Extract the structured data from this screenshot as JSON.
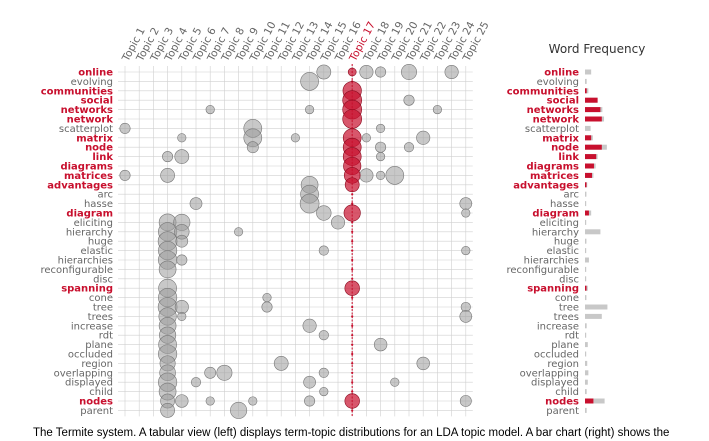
{
  "colors": {
    "highlight": "#c8102e",
    "neutral": "#8a8a8a",
    "bar_neutral": "#c8c8c8",
    "grid": "#d0d0d0",
    "label_gray": "#666666"
  },
  "topics": [
    "Topic 1",
    "Topic 2",
    "Topic 3",
    "Topic 4",
    "Topic 5",
    "Topic 6",
    "Topic 7",
    "Topic 8",
    "Topic 9",
    "Topic 10",
    "Topic 11",
    "Topic 12",
    "Topic 13",
    "Topic 14",
    "Topic 15",
    "Topic 16",
    "Topic 17",
    "Topic 18",
    "Topic 19",
    "Topic 20",
    "Topic 21",
    "Topic 22",
    "Topic 23",
    "Topic 24",
    "Topic 25"
  ],
  "selected_topic_index": 16,
  "word_frequency_title": "Word Frequency",
  "caption": "The Termite system. A tabular view (left) displays term-topic distributions for an LDA topic model. A bar chart (right) shows the",
  "terms": [
    {
      "term": "online",
      "highlight": true,
      "topic_weight": 0.18,
      "freq": 0.22,
      "overlay": 0
    },
    {
      "term": "evolving",
      "highlight": false,
      "topic_weight": 0,
      "freq": 0.06,
      "overlay": 0
    },
    {
      "term": "communities",
      "highlight": true,
      "topic_weight": 0.95,
      "freq": 0.12,
      "overlay": 0.06
    },
    {
      "term": "social",
      "highlight": true,
      "topic_weight": 1.0,
      "freq": 0.45,
      "overlay": 0.45
    },
    {
      "term": "networks",
      "highlight": true,
      "topic_weight": 1.0,
      "freq": 0.62,
      "overlay": 0.55
    },
    {
      "term": "network",
      "highlight": true,
      "topic_weight": 1.0,
      "freq": 0.68,
      "overlay": 0.6
    },
    {
      "term": "scatterplot",
      "highlight": false,
      "topic_weight": 0,
      "freq": 0.2,
      "overlay": 0
    },
    {
      "term": "matrix",
      "highlight": true,
      "topic_weight": 0.9,
      "freq": 0.28,
      "overlay": 0.22
    },
    {
      "term": "node",
      "highlight": true,
      "topic_weight": 0.9,
      "freq": 0.78,
      "overlay": 0.6
    },
    {
      "term": "link",
      "highlight": true,
      "topic_weight": 0.9,
      "freq": 0.45,
      "overlay": 0.4
    },
    {
      "term": "diagrams",
      "highlight": true,
      "topic_weight": 0.85,
      "freq": 0.38,
      "overlay": 0.32
    },
    {
      "term": "matrices",
      "highlight": true,
      "topic_weight": 0.7,
      "freq": 0.3,
      "overlay": 0.25
    },
    {
      "term": "advantages",
      "highlight": true,
      "topic_weight": 0.55,
      "freq": 0.08,
      "overlay": 0.03
    },
    {
      "term": "arc",
      "highlight": false,
      "topic_weight": 0,
      "freq": 0.05,
      "overlay": 0
    },
    {
      "term": "hasse",
      "highlight": false,
      "topic_weight": 0,
      "freq": 0.04,
      "overlay": 0
    },
    {
      "term": "diagram",
      "highlight": true,
      "topic_weight": 0.75,
      "freq": 0.22,
      "overlay": 0.14
    },
    {
      "term": "eliciting",
      "highlight": false,
      "topic_weight": 0,
      "freq": 0.04,
      "overlay": 0
    },
    {
      "term": "hierarchy",
      "highlight": false,
      "topic_weight": 0,
      "freq": 0.55,
      "overlay": 0
    },
    {
      "term": "huge",
      "highlight": false,
      "topic_weight": 0,
      "freq": 0.05,
      "overlay": 0
    },
    {
      "term": "elastic",
      "highlight": false,
      "topic_weight": 0,
      "freq": 0.04,
      "overlay": 0
    },
    {
      "term": "hierarchies",
      "highlight": false,
      "topic_weight": 0,
      "freq": 0.14,
      "overlay": 0
    },
    {
      "term": "reconfigurable",
      "highlight": false,
      "topic_weight": 0,
      "freq": 0.04,
      "overlay": 0
    },
    {
      "term": "disc",
      "highlight": false,
      "topic_weight": 0,
      "freq": 0.04,
      "overlay": 0
    },
    {
      "term": "spanning",
      "highlight": true,
      "topic_weight": 0.6,
      "freq": 0.1,
      "overlay": 0.05
    },
    {
      "term": "cone",
      "highlight": false,
      "topic_weight": 0,
      "freq": 0.05,
      "overlay": 0
    },
    {
      "term": "tree",
      "highlight": false,
      "topic_weight": 0,
      "freq": 0.8,
      "overlay": 0
    },
    {
      "term": "trees",
      "highlight": false,
      "topic_weight": 0,
      "freq": 0.6,
      "overlay": 0
    },
    {
      "term": "increase",
      "highlight": false,
      "topic_weight": 0,
      "freq": 0.06,
      "overlay": 0
    },
    {
      "term": "rdt",
      "highlight": false,
      "topic_weight": 0,
      "freq": 0.04,
      "overlay": 0
    },
    {
      "term": "plane",
      "highlight": false,
      "topic_weight": 0,
      "freq": 0.1,
      "overlay": 0
    },
    {
      "term": "occluded",
      "highlight": false,
      "topic_weight": 0,
      "freq": 0.04,
      "overlay": 0
    },
    {
      "term": "region",
      "highlight": false,
      "topic_weight": 0,
      "freq": 0.08,
      "overlay": 0
    },
    {
      "term": "overlapping",
      "highlight": false,
      "topic_weight": 0,
      "freq": 0.12,
      "overlay": 0
    },
    {
      "term": "displayed",
      "highlight": false,
      "topic_weight": 0,
      "freq": 0.1,
      "overlay": 0
    },
    {
      "term": "child",
      "highlight": false,
      "topic_weight": 0,
      "freq": 0.06,
      "overlay": 0
    },
    {
      "term": "nodes",
      "highlight": true,
      "topic_weight": 0.6,
      "freq": 0.7,
      "overlay": 0.3
    },
    {
      "term": "parent",
      "highlight": false,
      "topic_weight": 0,
      "freq": 0.06,
      "overlay": 0
    }
  ],
  "bubbles": [
    [
      0,
      14,
      0.55
    ],
    [
      0,
      17,
      0.5
    ],
    [
      0,
      18,
      0.3
    ],
    [
      0,
      20,
      0.65
    ],
    [
      0,
      23,
      0.5
    ],
    [
      1,
      13,
      0.9
    ],
    [
      3,
      20,
      0.3
    ],
    [
      4,
      6,
      0.2
    ],
    [
      4,
      13,
      0.2
    ],
    [
      4,
      22,
      0.2
    ],
    [
      6,
      0,
      0.3
    ],
    [
      6,
      9,
      0.9
    ],
    [
      6,
      18,
      0.2
    ],
    [
      7,
      9,
      0.9
    ],
    [
      7,
      4,
      0.2
    ],
    [
      7,
      12,
      0.2
    ],
    [
      7,
      17,
      0.2
    ],
    [
      7,
      21,
      0.5
    ],
    [
      8,
      9,
      0.35
    ],
    [
      8,
      20,
      0.25
    ],
    [
      8,
      18,
      0.3
    ],
    [
      9,
      3,
      0.3
    ],
    [
      9,
      4,
      0.55
    ],
    [
      9,
      18,
      0.2
    ],
    [
      11,
      0,
      0.3
    ],
    [
      11,
      3,
      0.55
    ],
    [
      11,
      17,
      0.5
    ],
    [
      11,
      18,
      0.2
    ],
    [
      11,
      19,
      0.9
    ],
    [
      12,
      13,
      0.8
    ],
    [
      13,
      13,
      0.9
    ],
    [
      14,
      13,
      1.0
    ],
    [
      14,
      5,
      0.4
    ],
    [
      14,
      24,
      0.4
    ],
    [
      15,
      14,
      0.6
    ],
    [
      15,
      24,
      0.2
    ],
    [
      16,
      3,
      0.8
    ],
    [
      16,
      4,
      0.75
    ],
    [
      16,
      15,
      0.5
    ],
    [
      17,
      3,
      0.95
    ],
    [
      17,
      4,
      0.6
    ],
    [
      17,
      8,
      0.2
    ],
    [
      18,
      3,
      1.0
    ],
    [
      18,
      4,
      0.4
    ],
    [
      19,
      3,
      0.95
    ],
    [
      19,
      14,
      0.25
    ],
    [
      19,
      24,
      0.2
    ],
    [
      20,
      3,
      0.95
    ],
    [
      20,
      4,
      0.3
    ],
    [
      21,
      3,
      0.8
    ],
    [
      23,
      3,
      0.9
    ],
    [
      24,
      3,
      0.95
    ],
    [
      24,
      10,
      0.2
    ],
    [
      25,
      3,
      1.0
    ],
    [
      25,
      4,
      0.5
    ],
    [
      25,
      10,
      0.3
    ],
    [
      25,
      24,
      0.25
    ],
    [
      26,
      3,
      0.85
    ],
    [
      26,
      4,
      0.2
    ],
    [
      26,
      24,
      0.4
    ],
    [
      27,
      3,
      0.8
    ],
    [
      27,
      13,
      0.5
    ],
    [
      28,
      3,
      0.75
    ],
    [
      28,
      14,
      0.25
    ],
    [
      29,
      3,
      0.9
    ],
    [
      29,
      18,
      0.45
    ],
    [
      30,
      3,
      0.95
    ],
    [
      31,
      3,
      0.65
    ],
    [
      31,
      11,
      0.55
    ],
    [
      31,
      21,
      0.45
    ],
    [
      32,
      3,
      0.7
    ],
    [
      32,
      6,
      0.35
    ],
    [
      32,
      7,
      0.65
    ],
    [
      32,
      14,
      0.25
    ],
    [
      33,
      3,
      0.95
    ],
    [
      33,
      5,
      0.25
    ],
    [
      33,
      13,
      0.4
    ],
    [
      33,
      19,
      0.2
    ],
    [
      34,
      3,
      0.8
    ],
    [
      34,
      14,
      0.2
    ],
    [
      35,
      3,
      0.55
    ],
    [
      35,
      4,
      0.45
    ],
    [
      35,
      6,
      0.2
    ],
    [
      35,
      9,
      0.2
    ],
    [
      35,
      13,
      0.3
    ],
    [
      35,
      24,
      0.35
    ],
    [
      36,
      3,
      0.55
    ],
    [
      36,
      8,
      0.75
    ]
  ]
}
